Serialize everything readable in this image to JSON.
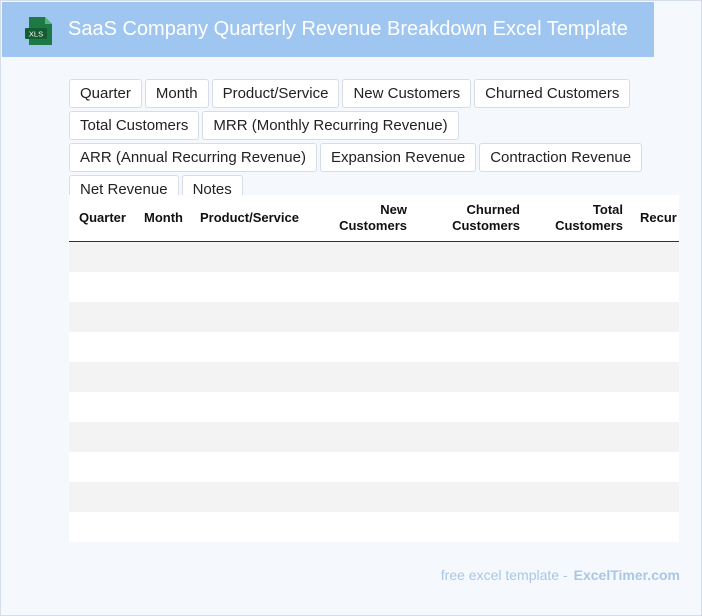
{
  "header": {
    "title": "SaaS Company Quarterly Revenue Breakdown Excel Template",
    "file_badge": "XLS",
    "accent_color": "#9ec6f0",
    "icon_color": "#1d7a45"
  },
  "field_chips": [
    "Quarter",
    "Month",
    "Product/Service",
    "New Customers",
    "Churned Customers",
    "Total Customers",
    "MRR (Monthly Recurring Revenue)",
    "ARR (Annual Recurring Revenue)",
    "Expansion Revenue",
    "Contraction Revenue",
    "Net Revenue",
    "Notes"
  ],
  "table": {
    "columns": [
      {
        "line1": "Quarter",
        "line2": ""
      },
      {
        "line1": "Month",
        "line2": ""
      },
      {
        "line1": "Product/Service",
        "line2": ""
      },
      {
        "line1": "New",
        "line2": "Customers"
      },
      {
        "line1": "Churned",
        "line2": "Customers"
      },
      {
        "line1": "Total",
        "line2": "Customers"
      },
      {
        "line1": "",
        "line2": "Recur"
      }
    ],
    "empty_row_count": 10
  },
  "footer": {
    "prefix": "free excel template -",
    "brand": "ExcelTimer.com"
  }
}
